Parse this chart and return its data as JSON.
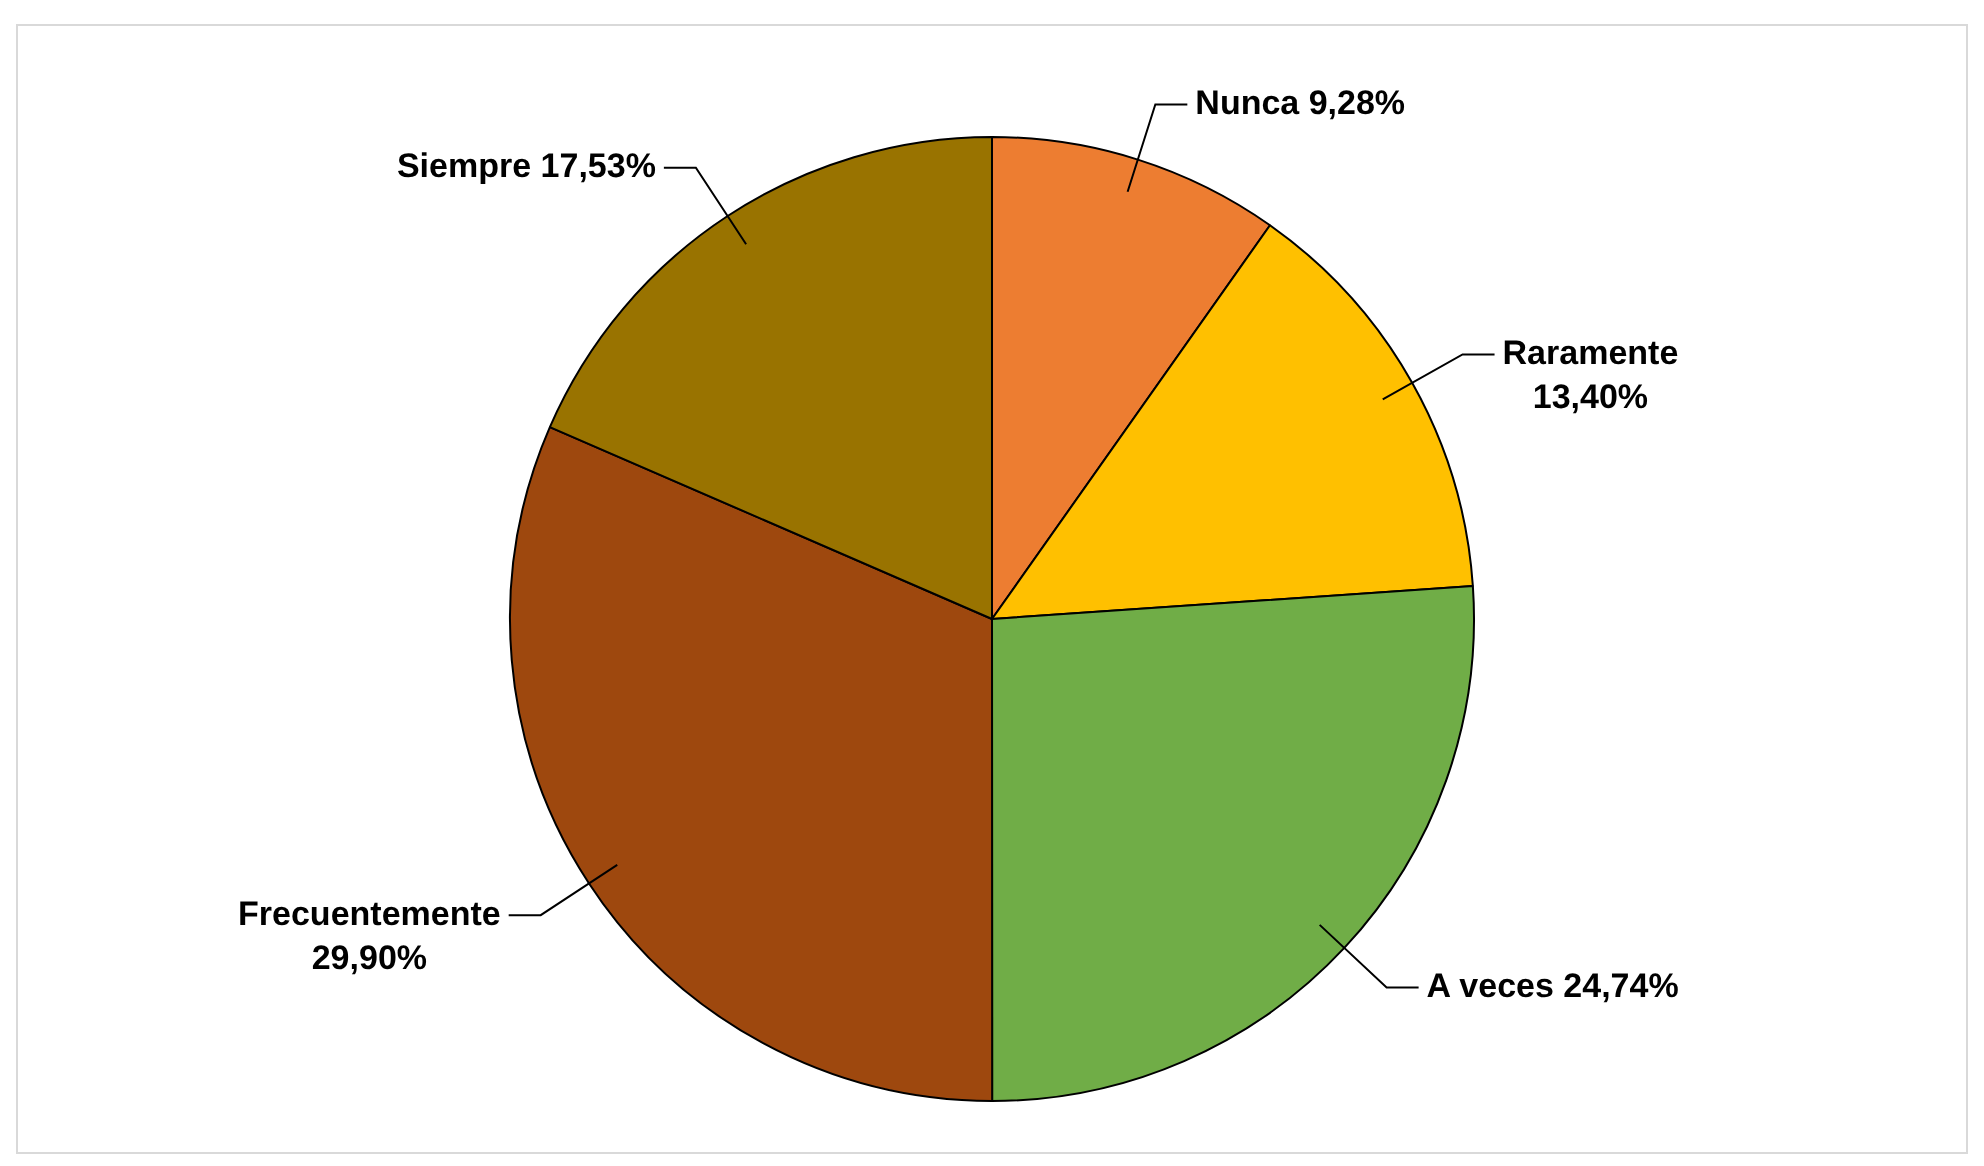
{
  "chart_data": {
    "type": "pie",
    "categories": [
      "Nunca",
      "Raramente",
      "A veces",
      "Frecuentemente",
      "Siempre"
    ],
    "values": [
      9.28,
      13.4,
      24.74,
      29.9,
      17.53
    ],
    "value_labels": [
      "9,28%",
      "13,40%",
      "24,74%",
      "29,90%",
      "17,53%"
    ],
    "colors": [
      "#ed7d31",
      "#ffc000",
      "#70ad47",
      "#9e480e",
      "#997300"
    ],
    "legend": false
  }
}
